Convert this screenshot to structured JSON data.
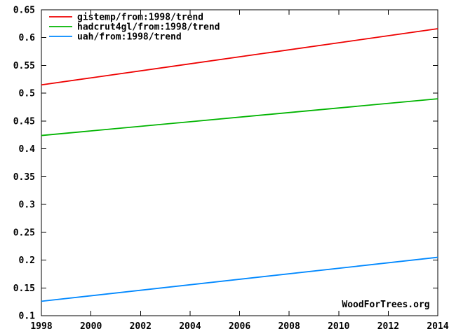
{
  "page": {
    "watermark": "WoodForTrees.org"
  },
  "chart_data": {
    "type": "line",
    "title": "",
    "xlabel": "",
    "ylabel": "",
    "xlim": [
      1998,
      2014
    ],
    "ylim": [
      0.1,
      0.65
    ],
    "x_tick_values": [
      1998,
      2000,
      2002,
      2004,
      2006,
      2008,
      2010,
      2012,
      2014
    ],
    "x_tick_labels": [
      "1998",
      "2000",
      "2002",
      "2004",
      "2006",
      "2008",
      "2010",
      "2012",
      "2014"
    ],
    "y_tick_values": [
      0.1,
      0.15,
      0.2,
      0.25,
      0.3,
      0.35,
      0.4,
      0.45,
      0.5,
      0.55,
      0.6,
      0.65
    ],
    "y_tick_labels": [
      "0.1",
      "0.15",
      "0.2",
      "0.25",
      "0.3",
      "0.35",
      "0.4",
      "0.45",
      "0.5",
      "0.55",
      "0.6",
      "0.65"
    ],
    "grid": false,
    "legend_position": "top-left",
    "background_color": "#ffffff",
    "axis_color": "#000000",
    "text_color": "#000000",
    "series": [
      {
        "name": "gistemp/from:1998/trend",
        "color": "#ee0000",
        "x": [
          1998,
          2014
        ],
        "y": [
          0.515,
          0.616
        ]
      },
      {
        "name": "hadcrut4gl/from:1998/trend",
        "color": "#00b400",
        "x": [
          1998,
          2014
        ],
        "y": [
          0.424,
          0.49
        ]
      },
      {
        "name": "uah/from:1998/trend",
        "color": "#0088ff",
        "x": [
          1998,
          2014
        ],
        "y": [
          0.126,
          0.205
        ]
      }
    ],
    "watermark": "WoodForTrees.org"
  }
}
